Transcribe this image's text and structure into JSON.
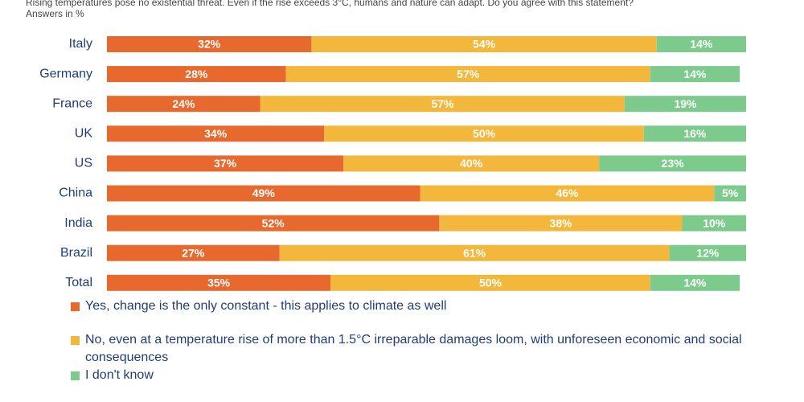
{
  "chart_data": {
    "type": "stacked-bar-horizontal",
    "title": "Rising temperatures pose no existential threat. Even if the rise exceeds 3°C, humans and nature can adapt. Do you agree with this statement?",
    "subtitle": "Answers in %",
    "categories": [
      "Italy",
      "Germany",
      "France",
      "UK",
      "US",
      "China",
      "India",
      "Brazil",
      "Total"
    ],
    "xlim": [
      0,
      100
    ],
    "legend": "bottom",
    "series": [
      {
        "name": "Yes, change is the only constant - this applies to climate as well",
        "color": "#e8692d",
        "values": [
          32,
          28,
          24,
          34,
          37,
          49,
          52,
          27,
          35
        ],
        "value_labels": [
          "32%",
          "28%",
          "24%",
          "34%",
          "37%",
          "49%",
          "52%",
          "27%",
          "35%"
        ]
      },
      {
        "name": "No, even at a temperature rise of more than 1.5°C irreparable damages loom, with unforeseen economic and social consequences",
        "color": "#f2b73b",
        "values": [
          54,
          57,
          57,
          50,
          40,
          46,
          38,
          61,
          50
        ],
        "value_labels": [
          "54%",
          "57%",
          "57%",
          "50%",
          "40%",
          "46%",
          "38%",
          "61%",
          "50%"
        ]
      },
      {
        "name": "I don't know",
        "color": "#7ccb8c",
        "values": [
          14,
          14,
          19,
          16,
          23,
          5,
          10,
          12,
          14
        ],
        "value_labels": [
          "14%",
          "14%",
          "19%",
          "16%",
          "23%",
          "5%",
          "10%",
          "12%",
          "14%"
        ]
      }
    ]
  }
}
